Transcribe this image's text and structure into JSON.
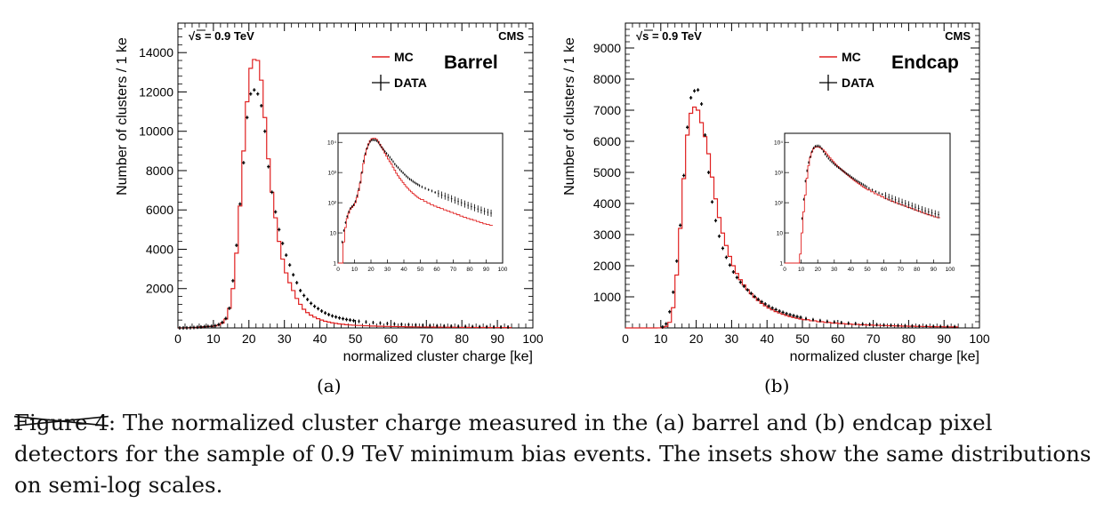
{
  "chart_data": [
    {
      "type": "line",
      "panel_label": "(a)",
      "region_label": "Barrel",
      "energy_label": "√s = 0.9 TeV",
      "experiment_label": "CMS",
      "xlabel": "normalized cluster charge [ke]",
      "ylabel": "Number of clusters / 1 ke",
      "xlim": [
        0,
        100
      ],
      "ylim": [
        0,
        15500
      ],
      "xticks": [
        0,
        10,
        20,
        30,
        40,
        50,
        60,
        70,
        80,
        90,
        100
      ],
      "yticks": [
        2000,
        4000,
        6000,
        8000,
        10000,
        12000,
        14000
      ],
      "legend": [
        "MC",
        "DATA"
      ],
      "legend_position": "top-right",
      "colors": {
        "MC": "#e02020",
        "DATA": "#000000"
      },
      "series": [
        {
          "name": "MC",
          "style": "step",
          "x": [
            0,
            1,
            2,
            3,
            4,
            5,
            6,
            7,
            8,
            9,
            10,
            11,
            12,
            13,
            14,
            15,
            16,
            17,
            18,
            19,
            20,
            21,
            22,
            23,
            24,
            25,
            26,
            27,
            28,
            29,
            30,
            31,
            32,
            33,
            34,
            35,
            36,
            37,
            38,
            39,
            40,
            41,
            42,
            43,
            44,
            45,
            46,
            47,
            48,
            49,
            50,
            52,
            54,
            56,
            58,
            60,
            62,
            64,
            66,
            68,
            70,
            72,
            74,
            76,
            78,
            80,
            82,
            84,
            86,
            88,
            90,
            92
          ],
          "y": [
            0,
            0,
            0,
            5,
            15,
            30,
            45,
            60,
            70,
            80,
            100,
            150,
            250,
            450,
            1000,
            2000,
            3800,
            6200,
            9000,
            11500,
            13200,
            13650,
            13600,
            12600,
            10700,
            8600,
            6900,
            5600,
            4400,
            3500,
            2800,
            2300,
            1900,
            1500,
            1200,
            950,
            780,
            650,
            550,
            470,
            400,
            340,
            300,
            260,
            230,
            205,
            185,
            165,
            150,
            138,
            128,
            110,
            97,
            86,
            77,
            70,
            64,
            58,
            53,
            48,
            44,
            40,
            36,
            33,
            30,
            28,
            26,
            24,
            22,
            20,
            19,
            18
          ]
        },
        {
          "name": "DATA",
          "style": "points",
          "x": [
            0.5,
            1.5,
            2.5,
            3.5,
            4.5,
            5.5,
            6.5,
            7.5,
            8.5,
            9.5,
            10.5,
            11.5,
            12.5,
            13.5,
            14.5,
            15.5,
            16.5,
            17.5,
            18.5,
            19.5,
            20.5,
            21.5,
            22.5,
            23.5,
            24.5,
            25.5,
            26.5,
            27.5,
            28.5,
            29.5,
            30.5,
            31.5,
            32.5,
            33.5,
            34.5,
            35.5,
            36.5,
            37.5,
            38.5,
            39.5,
            40.5,
            41.5,
            42.5,
            43.5,
            44.5,
            45.5,
            46.5,
            47.5,
            48.5,
            49.5,
            51,
            53,
            55,
            57,
            59,
            61,
            63,
            65,
            67,
            69,
            71,
            73,
            75,
            77,
            79,
            81,
            83,
            85,
            87,
            89,
            91,
            93
          ],
          "y": [
            0,
            0,
            5,
            12,
            22,
            35,
            50,
            65,
            75,
            85,
            110,
            170,
            280,
            480,
            1000,
            2400,
            4200,
            6300,
            8400,
            10700,
            11900,
            12100,
            11900,
            11300,
            10000,
            8200,
            6900,
            5900,
            5000,
            4300,
            3700,
            3200,
            2700,
            2300,
            1900,
            1650,
            1450,
            1250,
            1100,
            980,
            860,
            760,
            680,
            610,
            560,
            510,
            470,
            430,
            400,
            370,
            335,
            300,
            270,
            245,
            220,
            200,
            180,
            165,
            150,
            135,
            122,
            110,
            100,
            90,
            82,
            75,
            68,
            62,
            57,
            52,
            48,
            45
          ]
        }
      ],
      "inset": {
        "yscale": "log",
        "xlim": [
          0,
          100
        ],
        "ylim": [
          1,
          20000
        ],
        "xticks": [
          0,
          10,
          20,
          30,
          40,
          50,
          60,
          70,
          80,
          90,
          100
        ],
        "ytick_labels": [
          "1",
          "10",
          "10²",
          "10³",
          "10⁴"
        ]
      }
    },
    {
      "type": "line",
      "panel_label": "(b)",
      "region_label": "Endcap",
      "energy_label": "√s = 0.9 TeV",
      "experiment_label": "CMS",
      "xlabel": "normalized cluster charge [ke]",
      "ylabel": "Number of clusters / 1 ke",
      "xlim": [
        0,
        100
      ],
      "ylim": [
        0,
        9800
      ],
      "xticks": [
        0,
        10,
        20,
        30,
        40,
        50,
        60,
        70,
        80,
        90,
        100
      ],
      "yticks": [
        1000,
        2000,
        3000,
        4000,
        5000,
        6000,
        7000,
        8000,
        9000
      ],
      "legend": [
        "MC",
        "DATA"
      ],
      "legend_position": "top-right",
      "colors": {
        "MC": "#e02020",
        "DATA": "#000000"
      },
      "series": [
        {
          "name": "MC",
          "style": "step",
          "x": [
            0,
            1,
            2,
            3,
            4,
            5,
            6,
            7,
            8,
            9,
            10,
            11,
            12,
            13,
            14,
            15,
            16,
            17,
            18,
            19,
            20,
            21,
            22,
            23,
            24,
            25,
            26,
            27,
            28,
            29,
            30,
            31,
            32,
            33,
            34,
            35,
            36,
            37,
            38,
            39,
            40,
            41,
            42,
            43,
            44,
            45,
            46,
            47,
            48,
            49,
            50,
            52,
            54,
            56,
            58,
            60,
            62,
            64,
            66,
            68,
            70,
            72,
            74,
            76,
            78,
            80,
            82,
            84,
            86,
            88,
            90,
            92
          ],
          "y": [
            0,
            0,
            0,
            0,
            0,
            0,
            0,
            0,
            0,
            2,
            10,
            50,
            180,
            650,
            1700,
            3200,
            4800,
            6200,
            6900,
            7100,
            7000,
            6600,
            6150,
            5600,
            4850,
            4150,
            3550,
            3050,
            2650,
            2300,
            2000,
            1750,
            1550,
            1380,
            1230,
            1100,
            980,
            880,
            790,
            710,
            640,
            580,
            525,
            480,
            440,
            400,
            365,
            335,
            310,
            285,
            265,
            230,
            200,
            178,
            158,
            140,
            125,
            112,
            101,
            92,
            84,
            77,
            70,
            64,
            58,
            53,
            48,
            44,
            40,
            37,
            34,
            32
          ]
        },
        {
          "name": "DATA",
          "style": "points",
          "x": [
            10.5,
            11.5,
            12.5,
            13.5,
            14.5,
            15.5,
            16.5,
            17.5,
            18.5,
            19.5,
            20.5,
            21.5,
            22.5,
            23.5,
            24.5,
            25.5,
            26.5,
            27.5,
            28.5,
            29.5,
            30.5,
            31.5,
            32.5,
            33.5,
            34.5,
            35.5,
            36.5,
            37.5,
            38.5,
            39.5,
            40.5,
            41.5,
            42.5,
            43.5,
            44.5,
            45.5,
            46.5,
            47.5,
            48.5,
            49.5,
            51,
            53,
            55,
            57,
            59,
            61,
            63,
            65,
            67,
            69,
            71,
            73,
            75,
            77,
            79,
            81,
            83,
            85,
            87,
            89,
            91,
            93
          ],
          "y": [
            30,
            130,
            520,
            1150,
            2150,
            3300,
            4900,
            6450,
            7400,
            7620,
            7650,
            7200,
            6200,
            5000,
            4050,
            3450,
            2950,
            2560,
            2270,
            2020,
            1800,
            1620,
            1470,
            1340,
            1220,
            1110,
            1010,
            920,
            840,
            770,
            700,
            640,
            590,
            540,
            500,
            460,
            425,
            395,
            365,
            340,
            300,
            265,
            235,
            210,
            190,
            170,
            152,
            138,
            125,
            113,
            103,
            94,
            86,
            78,
            71,
            65,
            59,
            54,
            50,
            46,
            43,
            40
          ]
        }
      ],
      "inset": {
        "yscale": "log",
        "xlim": [
          0,
          100
        ],
        "ylim": [
          1,
          20000
        ],
        "xticks": [
          0,
          10,
          20,
          30,
          40,
          50,
          60,
          70,
          80,
          90,
          100
        ],
        "ytick_labels": [
          "1",
          "10",
          "10²",
          "10³",
          "10⁴"
        ]
      }
    }
  ],
  "caption": {
    "figure_label": "Figure 4",
    "text": ": The normalized cluster charge measured in the (a) barrel and (b) endcap pixel detectors for the sample of 0.9 TeV minimum bias events. The insets show the same distributions on semi-log scales."
  }
}
